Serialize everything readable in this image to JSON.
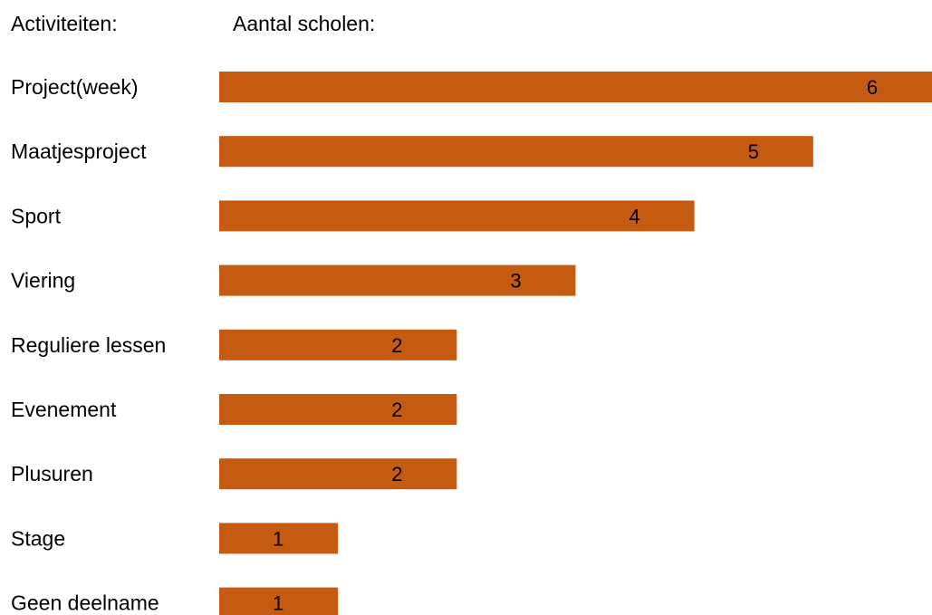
{
  "header": {
    "categories_label": "Activiteiten:",
    "values_label": "Aantal scholen:"
  },
  "chart_data": {
    "type": "bar",
    "orientation": "horizontal",
    "title": "",
    "xlabel": "Aantal scholen:",
    "ylabel": "Activiteiten:",
    "categories": [
      "Project(week)",
      "Maatjesproject",
      "Sport",
      "Viering",
      "Reguliere lessen",
      "Evenement",
      "Plusuren",
      "Stage",
      "Geen deelname"
    ],
    "values": [
      6,
      5,
      4,
      3,
      2,
      2,
      2,
      1,
      1
    ],
    "xlim": [
      0,
      6
    ],
    "grid": false,
    "legend": "none",
    "bar_color": "#c55a11",
    "data_labels": true
  }
}
